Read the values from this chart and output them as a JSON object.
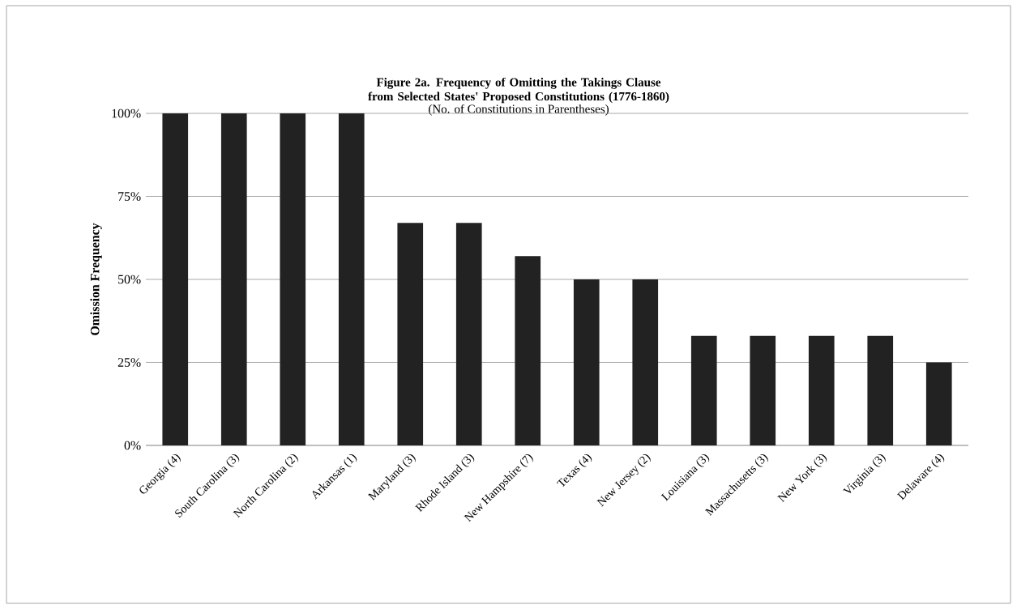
{
  "chart_data": {
    "type": "bar",
    "title": "Figure 2a. Frequency of Omitting the Takings Clause from Selected States' Proposed Constitutions  (1776-1860)",
    "subtitle": "(No. of Constitutions in Parentheses)",
    "ylabel": "Omission Frequency",
    "categories": [
      "Georgia (4)",
      "South Carolina (3)",
      "North Carolina (2)",
      "Arkansas (1)",
      "Maryland (3)",
      "Rhode Island (3)",
      "New Hampshire (7)",
      "Texas (4)",
      "New Jersey (2)",
      "Louisiana (3)",
      "Massachusetts (3)",
      "New York (3)",
      "Virginia (3)",
      "Delaware (4)"
    ],
    "values": [
      100,
      100,
      100,
      100,
      67,
      67,
      57,
      50,
      50,
      33,
      33,
      33,
      33,
      25
    ],
    "color": "#222222",
    "ylim": [
      0,
      100
    ],
    "yticks": [
      {
        "value": 0,
        "label": "0%"
      },
      {
        "value": 25,
        "label": "25%"
      },
      {
        "value": 50,
        "label": "50%"
      },
      {
        "value": 75,
        "label": "75%"
      },
      {
        "value": 100,
        "label": "100%"
      }
    ],
    "grid": "y"
  }
}
